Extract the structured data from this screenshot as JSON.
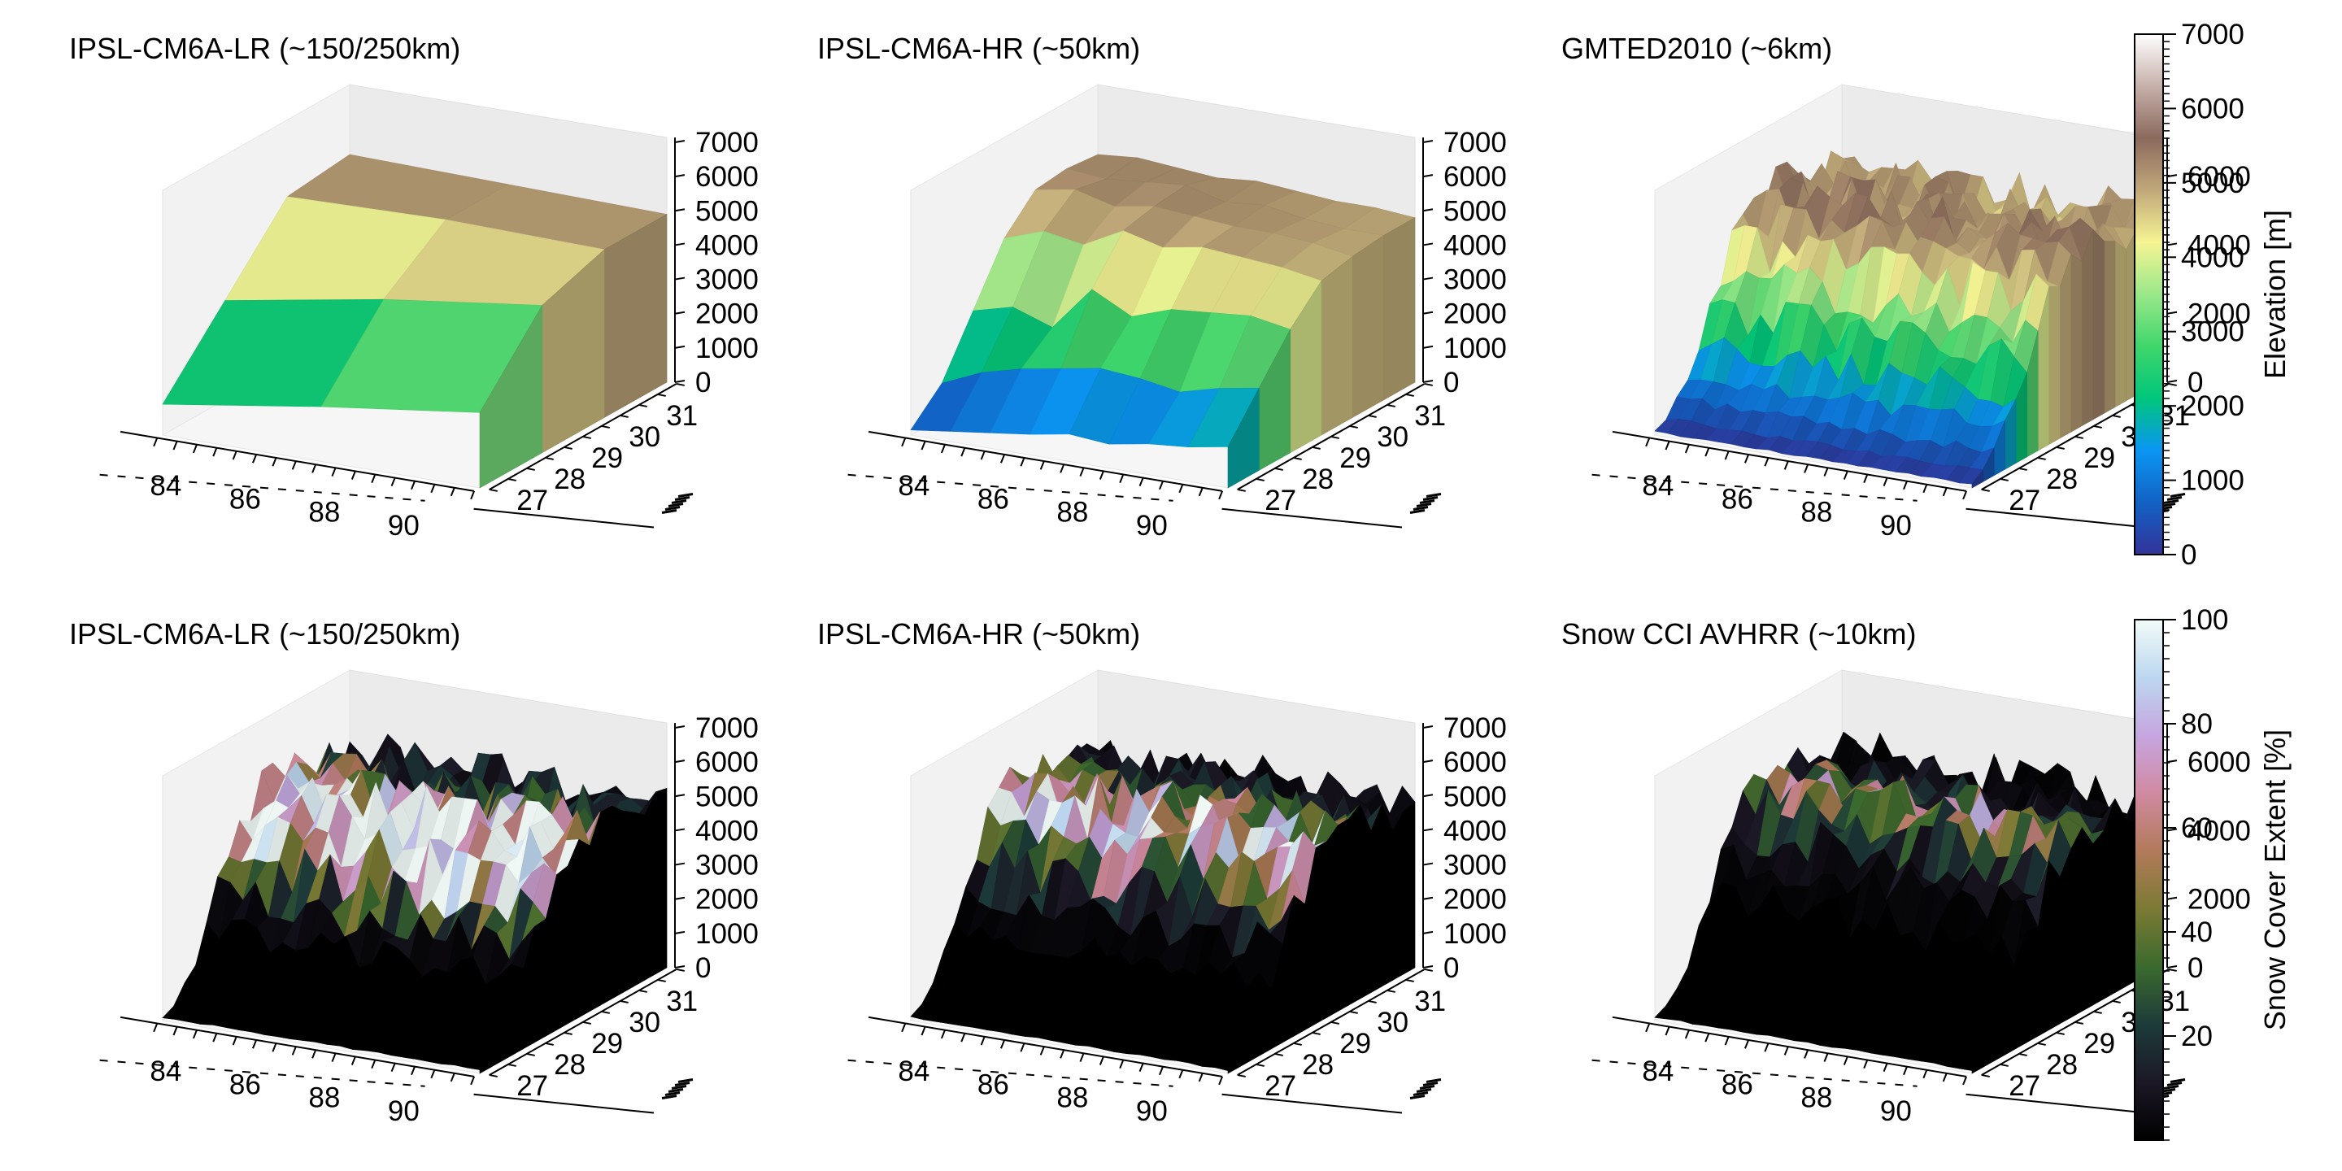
{
  "colors": {
    "terrain_cmap": [
      "#333399",
      "#1262c4",
      "#0b96f4",
      "#00c67b",
      "#3fd66b",
      "#9ae88a",
      "#f6f493",
      "#c1a87a",
      "#8b6a5d",
      "#c6b0aa",
      "#ffffff"
    ],
    "snow_cmap": [
      "#000000",
      "#1c1826",
      "#1d3b3a",
      "#3b6a2e",
      "#7b7a34",
      "#b27a5a",
      "#d08aa2",
      "#c6a6e0",
      "#bcd7ef",
      "#f2fbf8"
    ]
  },
  "chart_data": [
    {
      "type": "surface3d",
      "row": "elevation",
      "title": "IPSL-CM6A-LR (~150/250km)",
      "x_ticks": [
        "84",
        "86",
        "88",
        "90"
      ],
      "y_ticks": [
        "27",
        "28",
        "29",
        "30",
        "31"
      ],
      "z_ticks": [
        "0",
        "1000",
        "2000",
        "3000",
        "4000",
        "5000",
        "6000",
        "7000"
      ],
      "zlim": [
        0,
        7000
      ],
      "x_range": [
        83,
        91
      ],
      "y_range": [
        26.5,
        31.5
      ],
      "color_variable": "elevation",
      "grid_cols": 3,
      "grid_rows": 4,
      "z_grid": [
        [
          900,
          1600,
          2200
        ],
        [
          2900,
          3700,
          4300
        ],
        [
          4900,
          5000,
          4900
        ],
        [
          5100,
          5000,
          4900
        ]
      ]
    },
    {
      "type": "surface3d",
      "row": "elevation",
      "title": "IPSL-CM6A-HR (~50km)",
      "x_ticks": [
        "84",
        "86",
        "88",
        "90"
      ],
      "y_ticks": [
        "27",
        "28",
        "29",
        "30",
        "31"
      ],
      "z_ticks": [
        "0",
        "1000",
        "2000",
        "3000",
        "4000",
        "5000",
        "6000",
        "7000"
      ],
      "zlim": [
        0,
        7000
      ],
      "x_range": [
        83,
        91
      ],
      "y_range": [
        26.5,
        31.5
      ],
      "color_variable": "elevation",
      "grid_cols": 9,
      "grid_rows": 7,
      "z_grid": [
        [
          150,
          300,
          450,
          600,
          800,
          700,
          900,
          1000,
          1200
        ],
        [
          1000,
          1500,
          1800,
          2000,
          2200,
          2100,
          1900,
          2200,
          2400
        ],
        [
          2600,
          2900,
          2500,
          3800,
          3200,
          3600,
          3700,
          3800,
          3600
        ],
        [
          4200,
          4600,
          4400,
          5000,
          4700,
          4900,
          4800,
          4700,
          4500
        ],
        [
          5100,
          5300,
          5000,
          5200,
          5100,
          5000,
          5000,
          4900,
          4700
        ],
        [
          5200,
          5100,
          5200,
          5300,
          5000,
          5100,
          4900,
          4800,
          4800
        ],
        [
          5100,
          5200,
          5100,
          5000,
          5100,
          5000,
          4900,
          4900,
          4800
        ]
      ]
    },
    {
      "type": "surface3d",
      "row": "elevation",
      "title": "GMTED2010 (~6km)",
      "x_ticks": [
        "84",
        "86",
        "88",
        "90"
      ],
      "y_ticks": [
        "27",
        "28",
        "29",
        "30",
        "31"
      ],
      "z_ticks": [
        "0",
        "2000",
        "4000",
        "6000"
      ],
      "zlim": [
        0,
        7000
      ],
      "x_range": [
        83,
        91
      ],
      "y_range": [
        26.5,
        31.5
      ],
      "color_variable": "elevation",
      "grid_cols": 26,
      "grid_rows": 18,
      "roughness": 1000,
      "z_profile": [
        100,
        300,
        700,
        1300,
        2000,
        2800,
        3600,
        4300,
        4900,
        5300,
        5300,
        5200,
        5100,
        5000,
        5000,
        4900,
        4900,
        4800
      ]
    },
    {
      "type": "surface3d",
      "row": "snow",
      "title": "IPSL-CM6A-LR (~150/250km)",
      "x_ticks": [
        "84",
        "86",
        "88",
        "90"
      ],
      "y_ticks": [
        "27",
        "28",
        "29",
        "30",
        "31"
      ],
      "z_ticks": [
        "0",
        "1000",
        "2000",
        "3000",
        "4000",
        "5000",
        "6000",
        "7000"
      ],
      "zlim": [
        0,
        7000
      ],
      "x_range": [
        83,
        91
      ],
      "y_range": [
        26.5,
        31.5
      ],
      "color_variable": "snow_cover",
      "grid_cols": 26,
      "grid_rows": 18,
      "roughness": 1000,
      "z_profile": [
        100,
        300,
        700,
        1300,
        2000,
        2800,
        3600,
        4300,
        4900,
        5300,
        5300,
        5200,
        5100,
        5000,
        5000,
        4900,
        4900,
        4800
      ],
      "snow_by_row": [
        0,
        0,
        0,
        0,
        5,
        30,
        80,
        95,
        92,
        88,
        70,
        55,
        40,
        30,
        20,
        15,
        10,
        8
      ]
    },
    {
      "type": "surface3d",
      "row": "snow",
      "title": "IPSL-CM6A-HR (~50km)",
      "x_ticks": [
        "84",
        "86",
        "88",
        "90"
      ],
      "y_ticks": [
        "27",
        "28",
        "29",
        "30",
        "31"
      ],
      "z_ticks": [
        "0",
        "1000",
        "2000",
        "3000",
        "4000",
        "5000",
        "6000",
        "7000"
      ],
      "zlim": [
        0,
        7000
      ],
      "x_range": [
        83,
        91
      ],
      "y_range": [
        26.5,
        31.5
      ],
      "color_variable": "snow_cover",
      "grid_cols": 26,
      "grid_rows": 18,
      "roughness": 1000,
      "z_profile": [
        100,
        300,
        700,
        1300,
        2000,
        2800,
        3600,
        4300,
        4900,
        5300,
        5300,
        5200,
        5100,
        5000,
        5000,
        4900,
        4900,
        4800
      ],
      "snow_by_row": [
        0,
        0,
        0,
        0,
        2,
        15,
        45,
        75,
        85,
        70,
        50,
        35,
        25,
        15,
        10,
        8,
        5,
        5
      ]
    },
    {
      "type": "surface3d",
      "row": "snow",
      "title": "Snow CCI AVHRR (~10km)",
      "x_ticks": [
        "84",
        "86",
        "88",
        "90"
      ],
      "y_ticks": [
        "27",
        "28",
        "29",
        "30",
        "31"
      ],
      "z_ticks": [
        "0",
        "2000",
        "4000",
        "6000"
      ],
      "zlim": [
        0,
        7000
      ],
      "x_range": [
        83,
        91
      ],
      "y_range": [
        26.5,
        31.5
      ],
      "color_variable": "snow_cover",
      "grid_cols": 26,
      "grid_rows": 18,
      "roughness": 1000,
      "z_profile": [
        100,
        300,
        700,
        1300,
        2000,
        2800,
        3600,
        4300,
        4900,
        5300,
        5300,
        5200,
        5100,
        5000,
        5000,
        4900,
        4900,
        4800
      ],
      "snow_by_row": [
        0,
        0,
        0,
        0,
        0,
        2,
        8,
        20,
        40,
        55,
        45,
        25,
        15,
        8,
        5,
        3,
        2,
        2
      ]
    }
  ],
  "colorbars": [
    {
      "label": "Elevation [m]",
      "ticks": [
        "0",
        "1000",
        "2000",
        "3000",
        "4000",
        "5000",
        "6000",
        "7000"
      ],
      "range": [
        0,
        7000
      ],
      "cmap": "terrain_cmap"
    },
    {
      "label": "Snow Cover Extent [%]",
      "ticks": [
        "20",
        "40",
        "60",
        "80",
        "100"
      ],
      "range": [
        0,
        100
      ],
      "cmap": "snow_cmap"
    }
  ]
}
